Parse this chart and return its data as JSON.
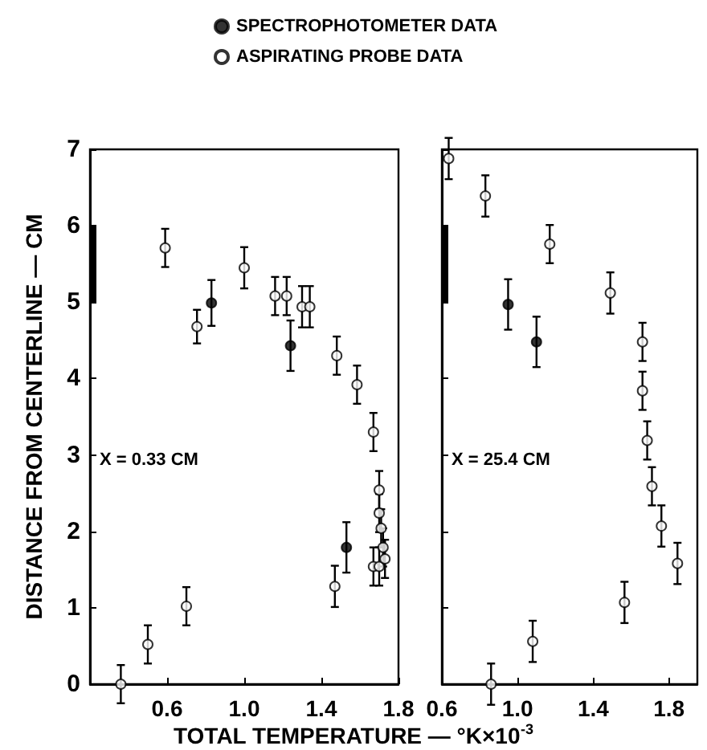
{
  "chart_data": [
    {
      "type": "scatter",
      "xlabel": "TOTAL TEMPERATURE — °K×10$^{-3}$",
      "ylabel": "DISTANCE FROM CENTERLINE — CM",
      "xlim": [
        0.2,
        1.8
      ],
      "xticks": [
        0.6,
        {
          "value": 1,
          "label": "1.0"
        },
        1.4,
        1.8
      ],
      "ylim": [
        0,
        7
      ],
      "yticks": [
        0,
        1,
        2,
        3,
        4,
        5,
        6,
        7
      ],
      "legend": "top",
      "marker": "circle",
      "grid": false,
      "annotations": [
        "X = 0.33 CM"
      ],
      "series": [
        {
          "name": "SPECTROPHOTOMETER DATA",
          "color": "#000000",
          "x": [
            0.83,
            1.24,
            1.53
          ],
          "values": [
            4.99,
            4.43,
            1.79
          ],
          "errors": [
            0.3,
            0.33,
            0.33
          ]
        },
        {
          "name": "ASPIRATING PROBE DATA",
          "color": "#ffffff",
          "x": [
            0.36,
            0.5,
            0.59,
            0.7,
            0.755,
            1.0,
            1.16,
            1.22,
            1.3,
            1.34,
            1.47,
            1.48,
            1.585,
            1.67,
            1.67,
            1.7,
            1.7,
            1.71,
            1.7,
            1.72,
            1.73
          ],
          "values": [
            0,
            0.52,
            5.71,
            1.02,
            4.68,
            5.45,
            5.08,
            5.08,
            4.94,
            4.94,
            1.28,
            4.3,
            3.92,
            3.3,
            1.54,
            2.54,
            2.24,
            2.04,
            1.54,
            1.79,
            1.64
          ],
          "errors": [
            0.25,
            0.25,
            0.25,
            0.25,
            0.22,
            0.27,
            0.25,
            0.25,
            0.27,
            0.27,
            0.27,
            0.25,
            0.25,
            0.25,
            0.25,
            0.25,
            0.25,
            0.25,
            0.25,
            0.25,
            0.25
          ]
        }
      ]
    },
    {
      "type": "scatter",
      "xlim": [
        0.6,
        1.95
      ],
      "xticks": [
        0.6,
        {
          "value": 1,
          "label": "1.0"
        },
        1.4,
        1.8
      ],
      "ylim": [
        0,
        7
      ],
      "yticks": [
        0,
        1,
        2,
        3,
        4,
        5,
        6,
        7
      ],
      "tick_labels": "x",
      "marker": "circle",
      "grid": false,
      "annotations": [
        "X = 25.4 CM"
      ],
      "series": [
        {
          "color": "#000000",
          "x": [
            0.95,
            1.1
          ],
          "values": [
            4.97,
            4.48
          ],
          "errors": [
            0.33,
            0.33
          ]
        },
        {
          "color": "#ffffff",
          "x": [
            0.636,
            0.83,
            0.86,
            1.08,
            1.17,
            1.49,
            1.565,
            1.66,
            1.66,
            1.685,
            1.71,
            1.76,
            1.845
          ],
          "values": [
            6.88,
            6.39,
            0,
            0.56,
            5.76,
            5.12,
            1.07,
            4.48,
            3.84,
            3.19,
            2.59,
            2.07,
            1.58
          ],
          "errors": [
            0.27,
            0.27,
            0.27,
            0.27,
            0.25,
            0.27,
            0.27,
            0.25,
            0.25,
            0.25,
            0.25,
            0.27,
            0.27
          ]
        }
      ]
    }
  ]
}
